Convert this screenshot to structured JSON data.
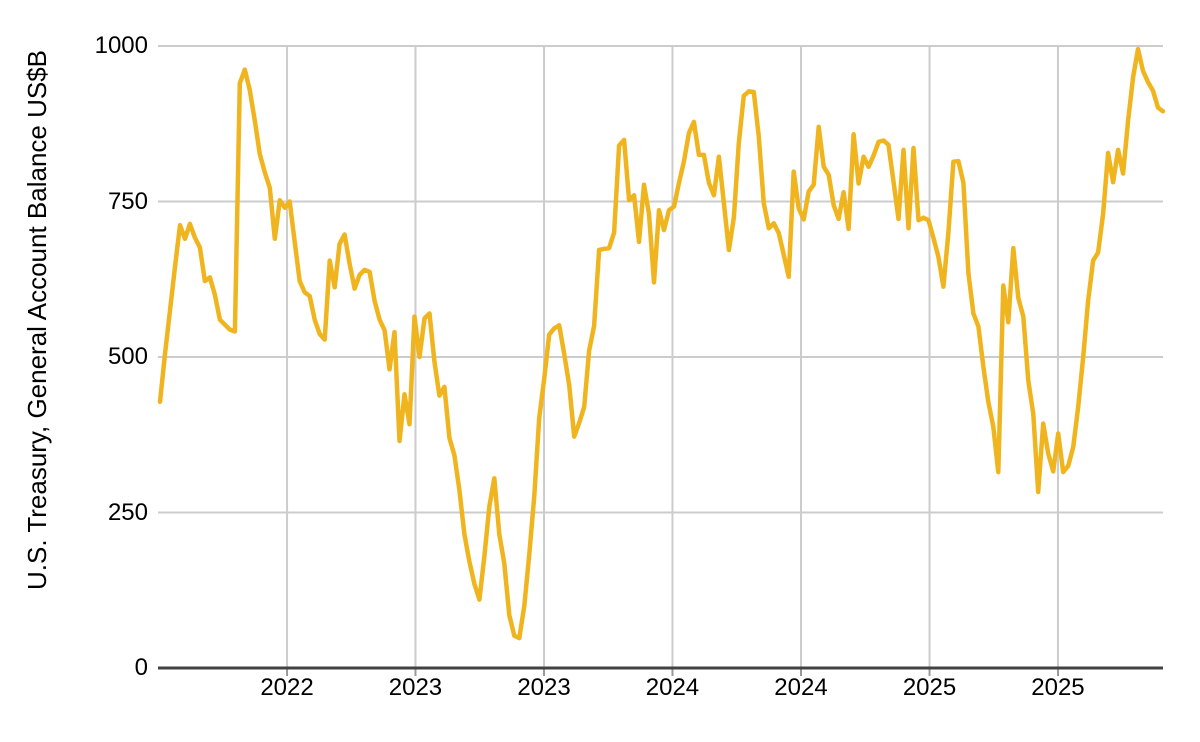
{
  "chart_data": {
    "type": "line",
    "title": "",
    "xlabel": "",
    "ylabel": "U.S. Treasury, General Account Balance US$B",
    "series_name": "U.S. Treasury General Account balance (US$B)",
    "frequency": "weekly",
    "x_start": "early 2022",
    "x_end": "late 2025",
    "ylim": [
      0,
      1000
    ],
    "grid": true,
    "legend_position": "none",
    "y_ticks": [
      {
        "value": 0,
        "label": "0"
      },
      {
        "value": 250,
        "label": "250"
      },
      {
        "value": 500,
        "label": "500"
      },
      {
        "value": 750,
        "label": "750"
      },
      {
        "value": 1000,
        "label": "1000"
      }
    ],
    "x_ticks": [
      {
        "label": "2022",
        "f": 0.1284
      },
      {
        "label": "2023",
        "f": 0.2562
      },
      {
        "label": "2023",
        "f": 0.3841
      },
      {
        "label": "2024",
        "f": 0.5119
      },
      {
        "label": "2024",
        "f": 0.6398
      },
      {
        "label": "2025",
        "f": 0.7677
      },
      {
        "label": "2025",
        "f": 0.8955
      }
    ],
    "values": [
      428,
      505,
      575,
      645,
      712,
      690,
      714,
      692,
      676,
      622,
      628,
      600,
      560,
      552,
      544,
      541,
      940,
      962,
      929,
      880,
      826,
      797,
      772,
      690,
      752,
      740,
      750,
      685,
      622,
      604,
      598,
      560,
      537,
      528,
      655,
      612,
      682,
      697,
      650,
      610,
      632,
      640,
      637,
      590,
      560,
      543,
      480,
      540,
      365,
      440,
      392,
      565,
      500,
      562,
      570,
      492,
      438,
      452,
      370,
      342,
      286,
      215,
      171,
      135,
      110,
      180,
      259,
      305,
      215,
      168,
      85,
      52,
      48,
      100,
      183,
      277,
      402,
      465,
      536,
      546,
      551,
      505,
      455,
      372,
      394,
      420,
      510,
      550,
      672,
      674,
      675,
      700,
      840,
      849,
      752,
      760,
      685,
      777,
      730,
      620,
      736,
      704,
      736,
      742,
      780,
      815,
      860,
      878,
      825,
      825,
      780,
      760,
      822,
      747,
      672,
      725,
      844,
      920,
      927,
      926,
      854,
      747,
      707,
      715,
      699,
      664,
      629,
      798,
      739,
      721,
      766,
      777,
      870,
      806,
      793,
      744,
      722,
      765,
      706,
      858,
      779,
      822,
      806,
      824,
      846,
      848,
      841,
      782,
      722,
      833,
      707,
      836,
      720,
      724,
      720,
      691,
      661,
      613,
      700,
      814,
      815,
      780,
      635,
      570,
      549,
      484,
      428,
      388,
      315,
      615,
      556,
      675,
      595,
      565,
      462,
      408,
      283,
      393,
      345,
      316,
      377,
      315,
      325,
      355,
      420,
      500,
      590,
      655,
      668,
      730,
      828,
      781,
      833,
      795,
      880,
      950,
      995,
      960,
      942,
      928,
      901,
      895
    ]
  },
  "colors": {
    "line": "#F0B41E",
    "grid": "#CCCCCC",
    "axis": "#424242",
    "tick_mark": "#999999",
    "text": "#000000",
    "background": "#FFFFFF"
  }
}
